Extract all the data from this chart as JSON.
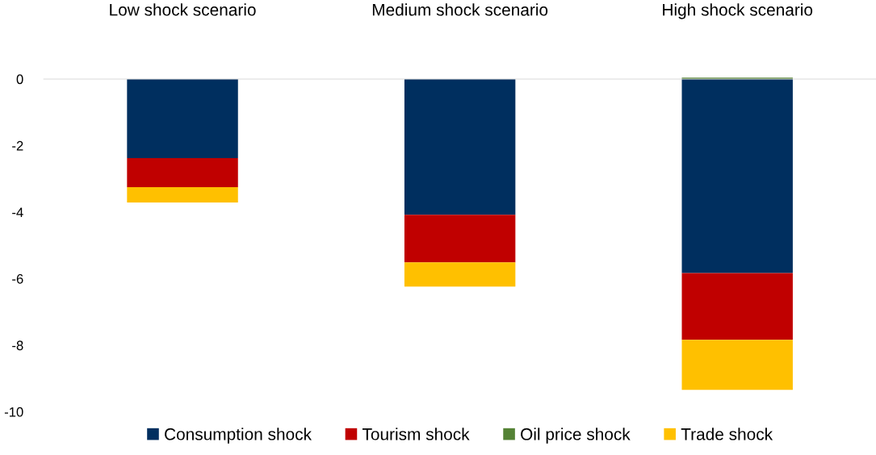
{
  "chart_data": {
    "type": "bar",
    "stacked": true,
    "categories": [
      "Low shock scenario",
      "Medium shock scenario",
      "High shock scenario"
    ],
    "series": [
      {
        "name": "Consumption shock",
        "color": "#002f5f",
        "values": [
          -2.38,
          -4.08,
          -5.83
        ]
      },
      {
        "name": "Tourism shock",
        "color": "#c00000",
        "values": [
          -0.87,
          -1.43,
          -2.01
        ]
      },
      {
        "name": "Oil price shock",
        "color": "#548235",
        "values": [
          0,
          0,
          0.04
        ]
      },
      {
        "name": "Trade shock",
        "color": "#ffc000",
        "values": [
          -0.46,
          -0.73,
          -1.5
        ]
      }
    ],
    "ylim": [
      -10,
      0.05
    ],
    "yticks": [
      0,
      -2,
      -4,
      -6,
      -8,
      -10
    ],
    "grid": false,
    "legend": "bottom"
  }
}
